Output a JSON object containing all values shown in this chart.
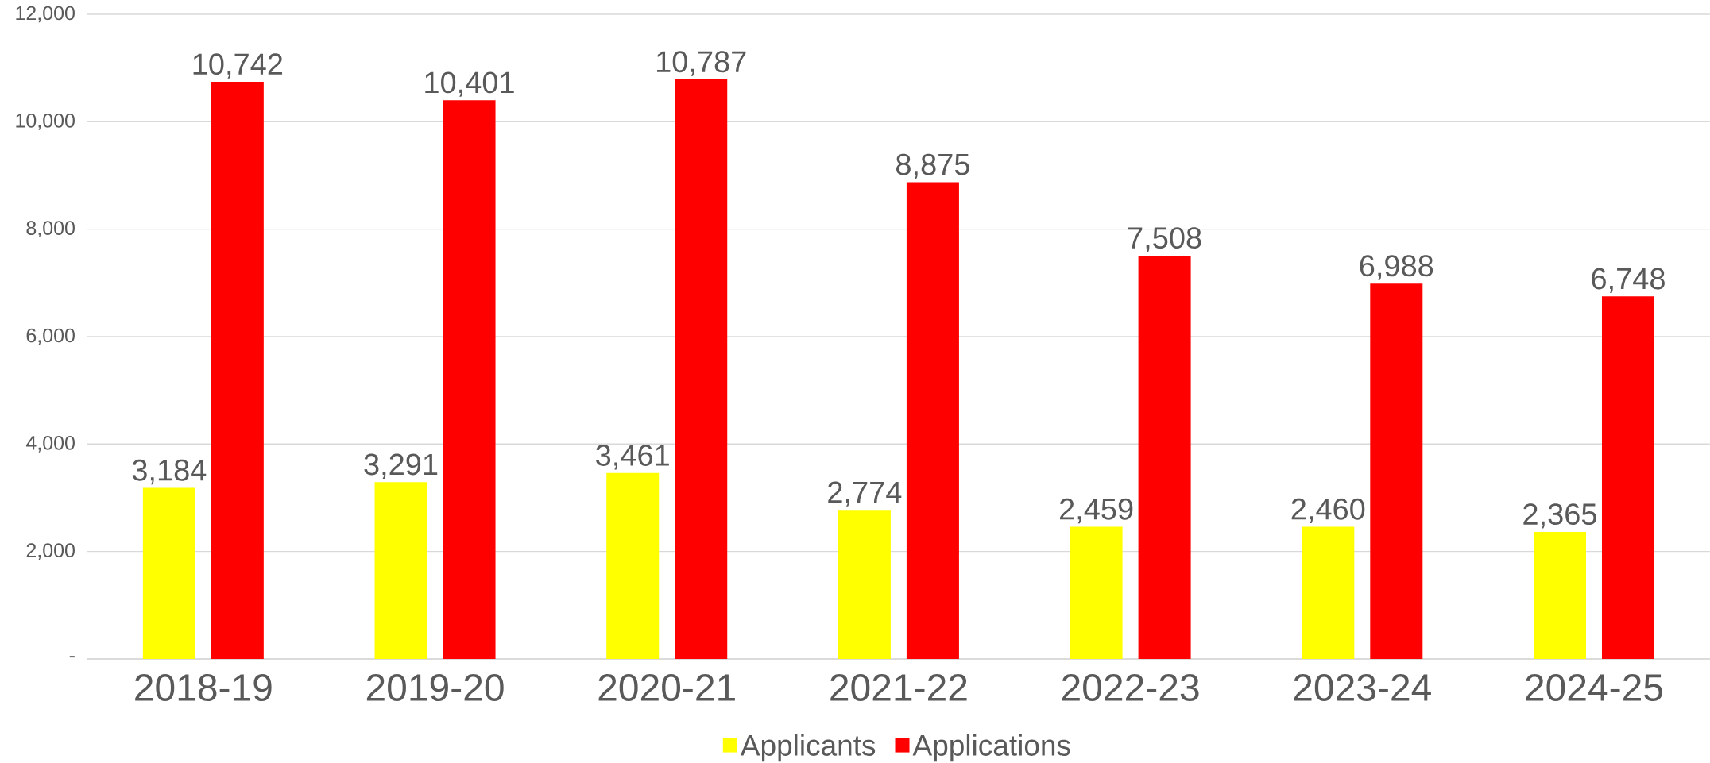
{
  "chart_data": {
    "type": "bar",
    "categories": [
      "2018-19",
      "2019-20",
      "2020-21",
      "2021-22",
      "2022-23",
      "2023-24",
      "2024-25"
    ],
    "series": [
      {
        "name": "Applicants",
        "color": "#ffff00",
        "values": [
          3184,
          3291,
          3461,
          2774,
          2459,
          2460,
          2365
        ],
        "value_labels": [
          "3,184",
          "3,291",
          "3,461",
          "2,774",
          "2,459",
          "2,460",
          "2,365"
        ]
      },
      {
        "name": "Applications",
        "color": "#ff0000",
        "values": [
          10742,
          10401,
          10787,
          8875,
          7508,
          6988,
          6748
        ],
        "value_labels": [
          "10,742",
          "10,401",
          "10,787",
          "8,875",
          "7,508",
          "6,988",
          "6,748"
        ]
      }
    ],
    "ylim": [
      0,
      12000
    ],
    "yticks": [
      {
        "value": 0,
        "label": "-"
      },
      {
        "value": 2000,
        "label": "2,000"
      },
      {
        "value": 4000,
        "label": "4,000"
      },
      {
        "value": 6000,
        "label": "6,000"
      },
      {
        "value": 8000,
        "label": "8,000"
      },
      {
        "value": 10000,
        "label": "10,000"
      },
      {
        "value": 12000,
        "label": "12,000"
      }
    ],
    "grid": "y",
    "legend": "bottom"
  }
}
